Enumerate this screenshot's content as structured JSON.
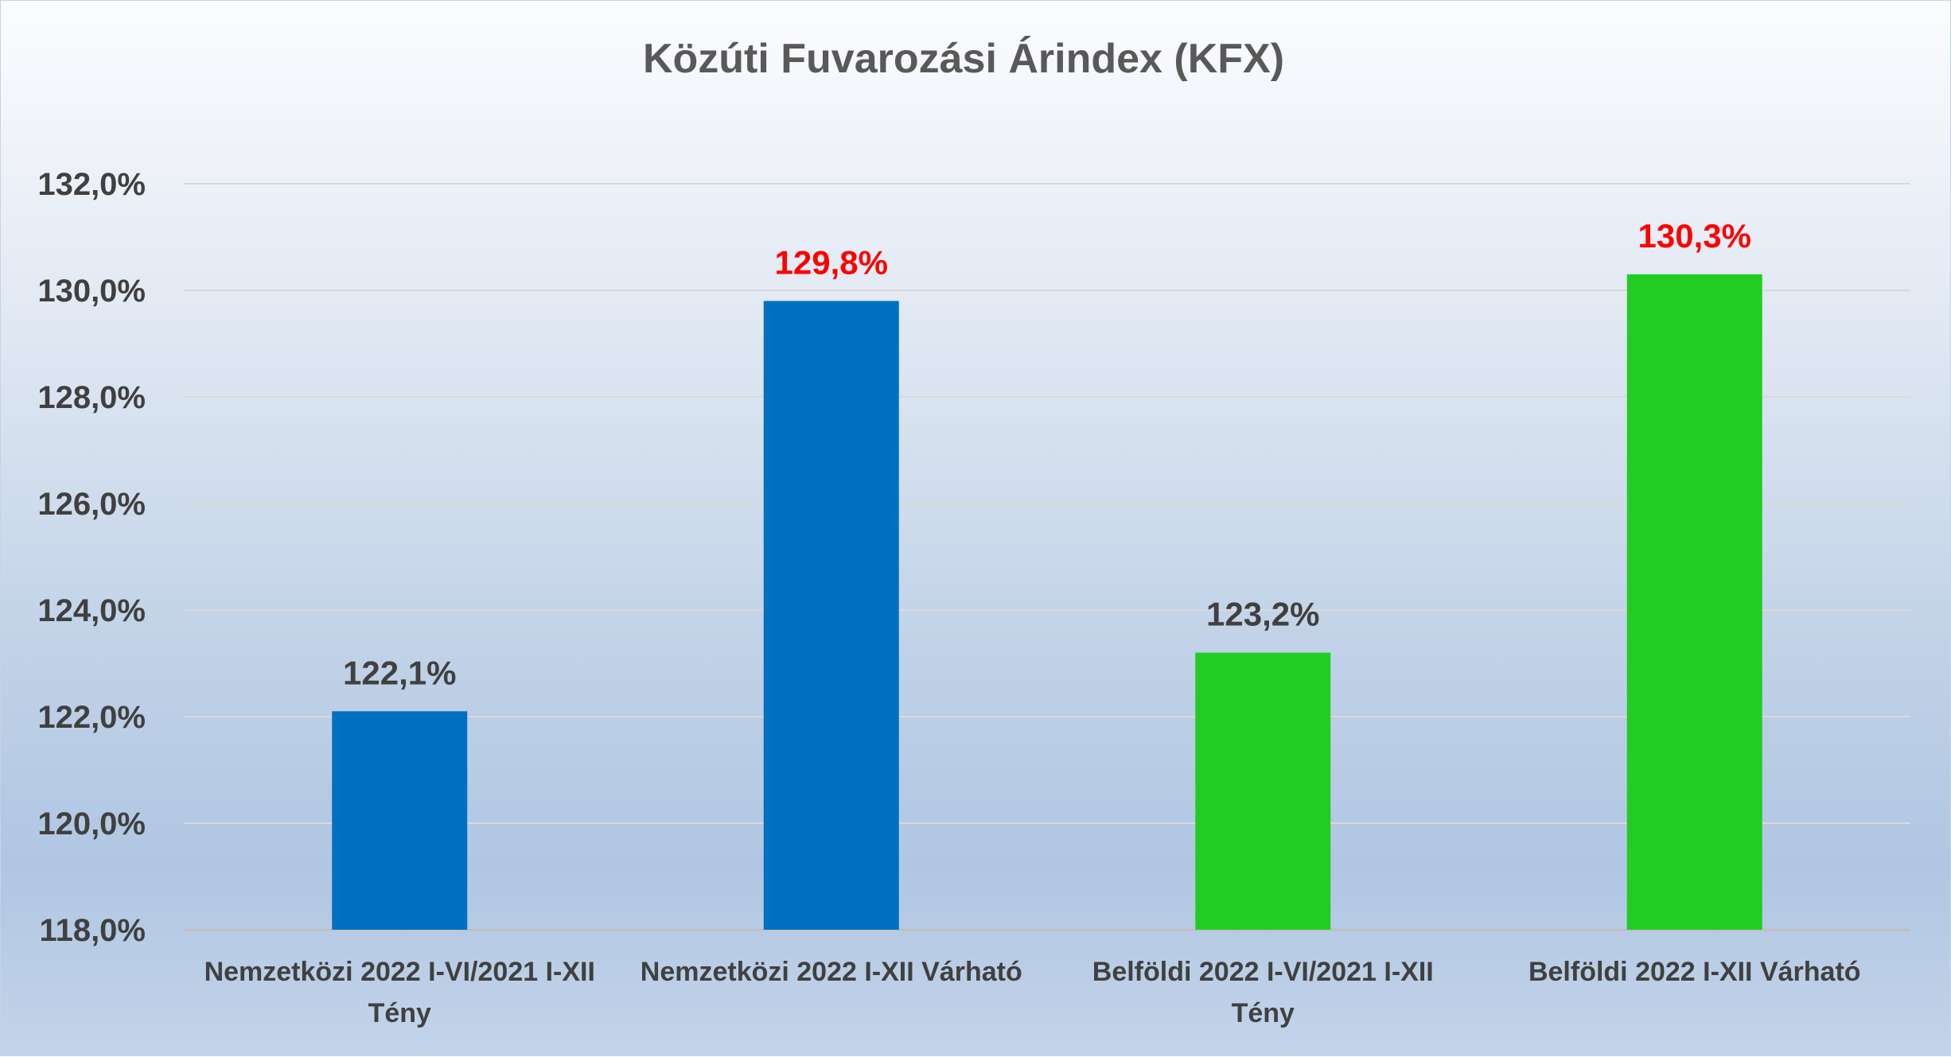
{
  "chart_data": {
    "type": "bar",
    "title": "Közúti Fuvarozási Árindex (KFX)",
    "xlabel": "",
    "ylabel": "",
    "ylim": [
      118,
      132
    ],
    "ytick_step": 2,
    "ytick_labels": [
      "118,0%",
      "120,0%",
      "122,0%",
      "124,0%",
      "126,0%",
      "128,0%",
      "130,0%",
      "132,0%"
    ],
    "grid": true,
    "legend": "none",
    "categories": [
      [
        "Nemzetközi 2022 I-VI/2021 I-XII",
        "Tény"
      ],
      [
        "Nemzetközi 2022 I-XII Várható"
      ],
      [
        "Belföldi 2022 I-VI/2021 I-XII",
        "Tény"
      ],
      [
        "Belföldi 2022 I-XII Várható"
      ]
    ],
    "values": [
      122.1,
      129.8,
      123.2,
      130.3
    ],
    "data_labels": [
      "122,1%",
      "129,8%",
      "123,2%",
      "130,3%"
    ],
    "bar_colors": [
      "#0070c0",
      "#0070c0",
      "#22cc22",
      "#22cc22"
    ],
    "label_colors": [
      "#404040",
      "#ff0000",
      "#404040",
      "#ff0000"
    ]
  }
}
